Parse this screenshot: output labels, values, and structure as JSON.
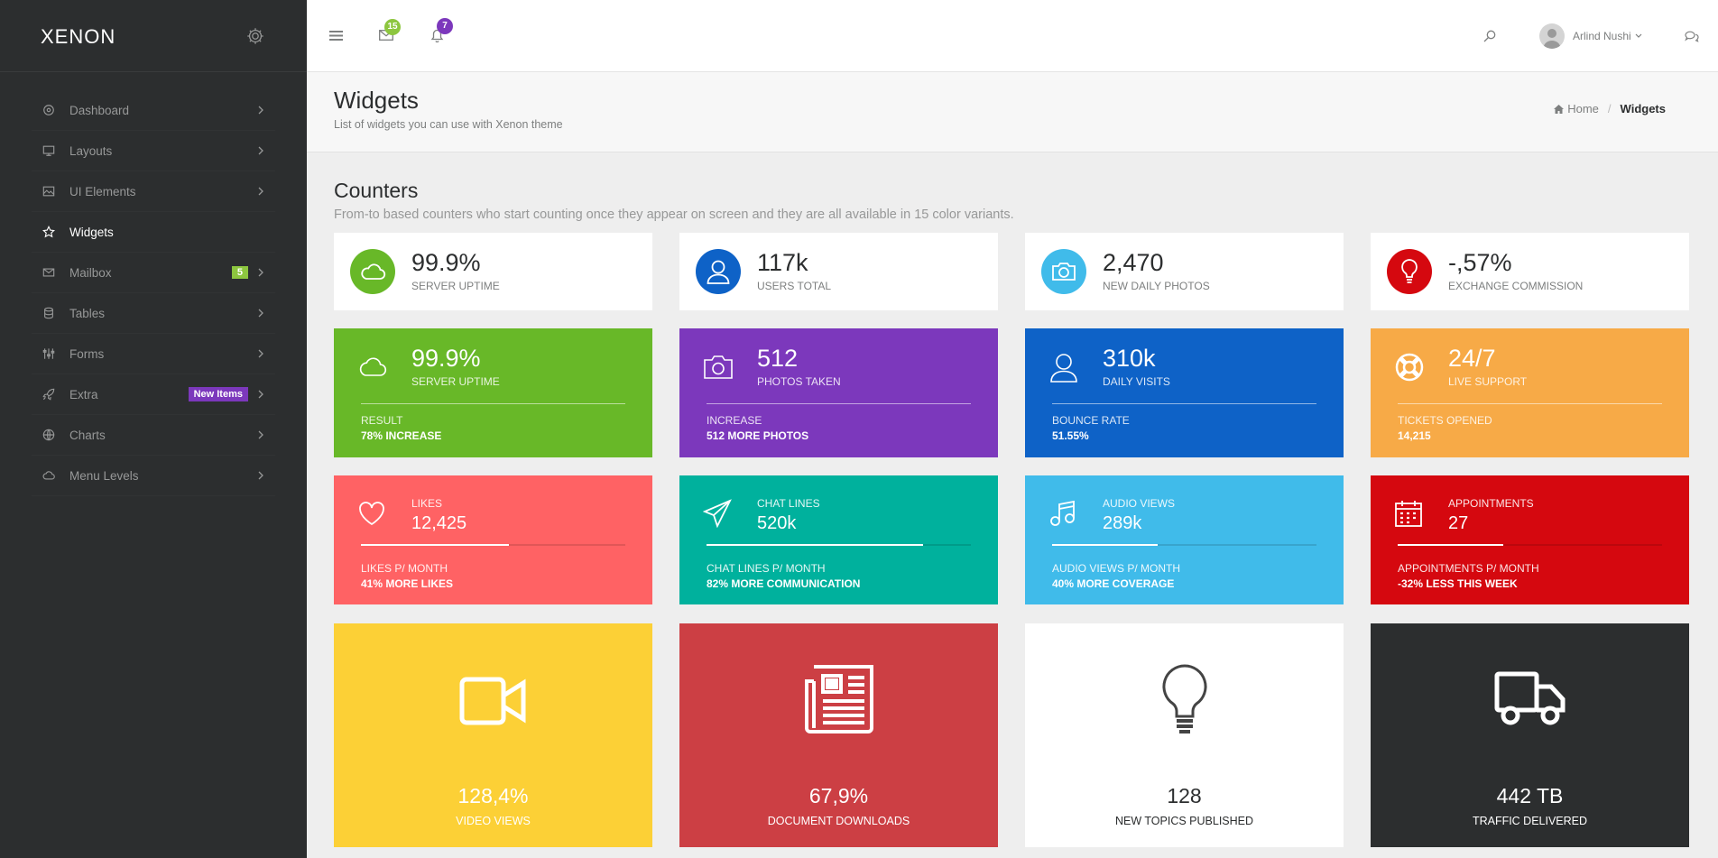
{
  "sidebar": {
    "logo": "XENON",
    "items": [
      {
        "label": "Dashboard",
        "icon": "dashboard-icon"
      },
      {
        "label": "Layouts",
        "icon": "monitor-icon"
      },
      {
        "label": "UI Elements",
        "icon": "image-icon"
      },
      {
        "label": "Widgets",
        "icon": "star-icon",
        "active": true
      },
      {
        "label": "Mailbox",
        "icon": "envelope-icon",
        "badge": "5"
      },
      {
        "label": "Tables",
        "icon": "database-icon"
      },
      {
        "label": "Forms",
        "icon": "sliders-icon"
      },
      {
        "label": "Extra",
        "icon": "rocket-icon",
        "badge": "New Items"
      },
      {
        "label": "Charts",
        "icon": "globe-icon"
      },
      {
        "label": "Menu Levels",
        "icon": "cloud-icon"
      }
    ]
  },
  "topbar": {
    "messages_count": "15",
    "notifications_count": "7",
    "user_name": "Arlind Nushi"
  },
  "page": {
    "title": "Widgets",
    "subtitle": "List of widgets you can use with Xenon theme",
    "breadcrumb": {
      "home": "Home",
      "current": "Widgets"
    }
  },
  "section": {
    "title": "Counters",
    "subtitle": "From-to based counters who start counting once they appear on screen and they are all available in 15 color variants."
  },
  "row1": [
    {
      "value": "99.9%",
      "label": "SERVER UPTIME",
      "color": "#68b828",
      "icon": "cloud-icon"
    },
    {
      "value": "117k",
      "label": "USERS TOTAL",
      "color": "#0e62c7",
      "icon": "user-icon"
    },
    {
      "value": "2,470",
      "label": "NEW DAILY PHOTOS",
      "color": "#40bbea",
      "icon": "camera-icon"
    },
    {
      "value": "-,57%",
      "label": "EXCHANGE COMMISSION",
      "color": "#cc3f44",
      "icon": "lightbulb-icon"
    }
  ],
  "row2": [
    {
      "value": "99.9%",
      "label": "SERVER UPTIME",
      "footer_label": "RESULT",
      "footer_value": "78% INCREASE",
      "color": "#68b828",
      "icon": "cloud-icon"
    },
    {
      "value": "512",
      "label": "PHOTOS TAKEN",
      "footer_label": "INCREASE",
      "footer_value": "512 MORE PHOTOS",
      "color": "#7c38bc",
      "icon": "camera-icon"
    },
    {
      "value": "310k",
      "label": "DAILY VISITS",
      "footer_label": "BOUNCE RATE",
      "footer_value": "51.55%",
      "color": "#0e62c7",
      "icon": "user-icon"
    },
    {
      "value": "24/7",
      "label": "LIVE SUPPORT",
      "footer_label": "TICKETS OPENED",
      "footer_value": "14,215",
      "color": "#f7aa47",
      "icon": "lifebuoy-icon"
    }
  ],
  "row3": [
    {
      "label": "LIKES",
      "value": "12,425",
      "progress": 0.56,
      "footer_label": "LIKES P/ MONTH",
      "footer_value": "41% MORE LIKES",
      "color": "#ff6264",
      "icon": "heart-icon"
    },
    {
      "label": "CHAT LINES",
      "value": "520k",
      "progress": 0.82,
      "footer_label": "CHAT LINES P/ MONTH",
      "footer_value": "82% MORE COMMUNICATION",
      "color": "#00b19d",
      "icon": "paper-plane-icon"
    },
    {
      "label": "AUDIO VIEWS",
      "value": "289k",
      "progress": 0.4,
      "footer_label": "AUDIO VIEWS P/ MONTH",
      "footer_value": "40% MORE COVERAGE",
      "color": "#40bbea",
      "icon": "music-icon"
    },
    {
      "label": "APPOINTMENTS",
      "value": "27",
      "progress": 0.4,
      "footer_label": "APPOINTMENTS P/ MONTH",
      "footer_value": "-32% LESS THIS WEEK",
      "color": "#d5080f",
      "icon": "calendar-icon"
    }
  ],
  "row4": [
    {
      "value": "128,4%",
      "label": "VIDEO VIEWS",
      "color": "#fcd036",
      "icon": "video-camera-icon"
    },
    {
      "value": "67,9%",
      "label": "DOCUMENT DOWNLOADS",
      "color": "#cc3f44",
      "icon": "newspaper-icon"
    },
    {
      "value": "128",
      "label": "NEW TOPICS PUBLISHED",
      "color": "#ffffff",
      "icon": "lightbulb-icon"
    },
    {
      "value": "442 TB",
      "label": "TRAFFIC DELIVERED",
      "color": "#2c2e2f",
      "icon": "truck-icon"
    }
  ]
}
